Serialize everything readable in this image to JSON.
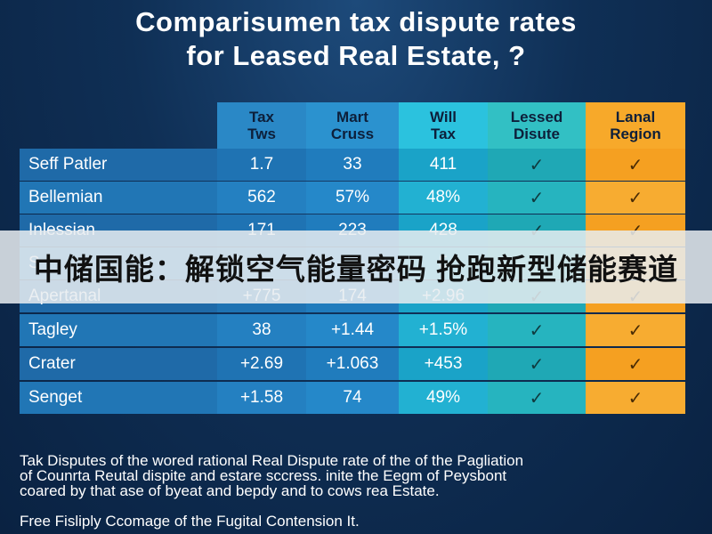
{
  "title": {
    "line1": "Comparisumen tax dispute rates",
    "line2": "for Leased Real Estate, ?"
  },
  "table": {
    "headers": [
      {
        "line1": "Tax",
        "line2": "Tws"
      },
      {
        "line1": "Mart",
        "line2": "Cruss"
      },
      {
        "line1": "Will",
        "line2": "Tax"
      },
      {
        "line1": "Lessed",
        "line2": "Disute"
      },
      {
        "line1": "Lanal",
        "line2": "Region"
      }
    ],
    "rows": [
      {
        "label": "Seff Patler",
        "v1": "1.7",
        "v2": "33",
        "v3": "411",
        "c4": "✓",
        "c5": "✓"
      },
      {
        "label": "Bellemian",
        "v1": "562",
        "v2": "57%",
        "v3": "48%",
        "c4": "✓",
        "c5": "✓"
      },
      {
        "label": "Inlessian",
        "v1": "171",
        "v2": "223",
        "v3": "428",
        "c4": "✓",
        "c5": "✓"
      },
      {
        "label": "S",
        "v1": "",
        "v2": "",
        "v3": "5",
        "c4": "",
        "c5": ""
      },
      {
        "label": "Apertanal",
        "v1": "+775",
        "v2": "174",
        "v3": "+2.96",
        "c4": "✓",
        "c5": "✓"
      },
      {
        "label": "Tagley",
        "v1": "38",
        "v2": "+1.44",
        "v3": "+1.5%",
        "c4": "✓",
        "c5": "✓"
      },
      {
        "label": "Crater",
        "v1": "+2.69",
        "v2": "+1.063",
        "v3": "+453",
        "c4": "✓",
        "c5": "✓"
      },
      {
        "label": "Senget",
        "v1": "+1.58",
        "v2": "74",
        "v3": "49%",
        "c4": "✓",
        "c5": "✓"
      }
    ]
  },
  "banner": {
    "text": "中储国能：解锁空气能量密码 抢跑新型储能赛道"
  },
  "footer": {
    "line1": "Tak Disputes of the wored rational Real Dispute rate of the of the Pagliation",
    "line2": "of Counrta Reutal dispite and estare sccress. inite the Eegm of Peysbont",
    "line3": "coared by that ase of byeat and bepdy and to cows rea Estate.",
    "line4": "Free Fisliply Ccomage of the Fugital Contension It."
  },
  "colors": {
    "background": "#0f2f55",
    "accent_orange": "#f5a021",
    "accent_teal": "#1fa8b5",
    "banner_bg": "#e8ecf0"
  }
}
